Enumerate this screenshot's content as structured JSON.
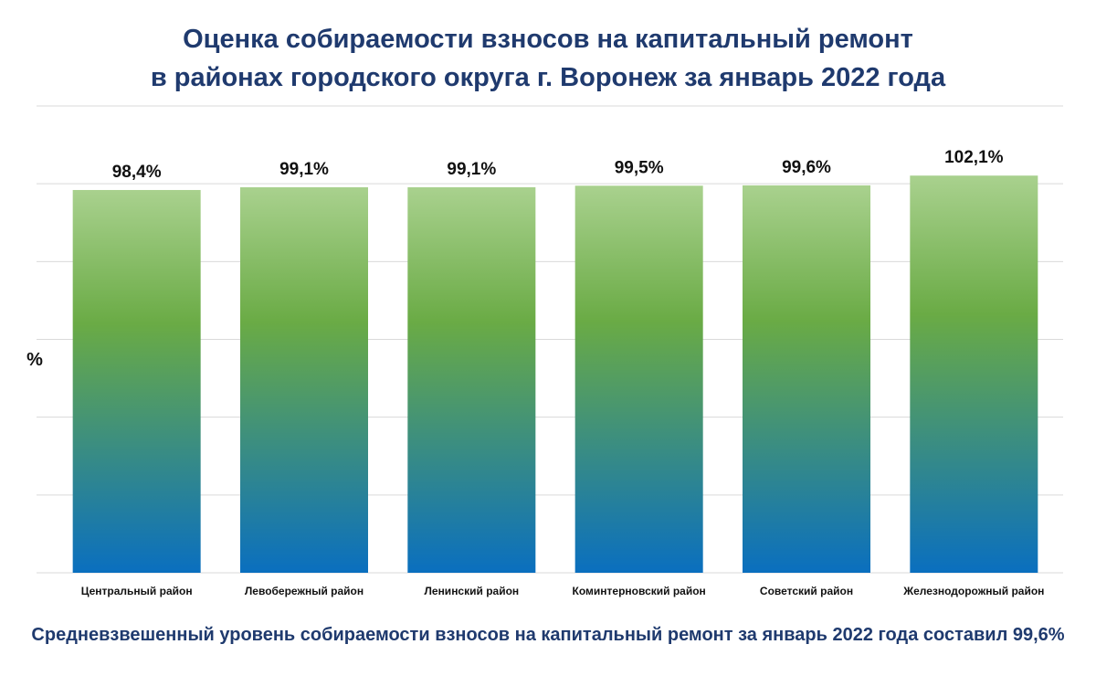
{
  "title": {
    "line1": "Оценка собираемости взносов на капитальный ремонт",
    "line2": "в районах городского округа г. Воронеж за январь 2022 года"
  },
  "footer": "Средневзвешенный уровень собираемости взносов на капитальный ремонт за январь 2022 года составил 99,6%",
  "chart_data": {
    "type": "bar",
    "title": "Оценка собираемости взносов на капитальный ремонт в районах городского округа г. Воронеж за январь 2022 года",
    "xlabel": "",
    "ylabel": "%",
    "categories": [
      "Центральный район",
      "Левобережный район",
      "Ленинский район",
      "Коминтерновский район",
      "Советский район",
      "Железнодорожный район"
    ],
    "values": [
      98.4,
      99.1,
      99.1,
      99.5,
      99.6,
      102.1
    ],
    "value_labels": [
      "98,4%",
      "99,1%",
      "99,1%",
      "99,5%",
      "99,6%",
      "102,1%"
    ],
    "ylim": [
      0,
      120
    ],
    "grid": true,
    "legend": "none",
    "colors": {
      "bar_top": "#a9d18e",
      "bar_mid": "#6aab45",
      "bar_bottom": "#0a6fbf",
      "grid": "#d9d9d9"
    }
  }
}
